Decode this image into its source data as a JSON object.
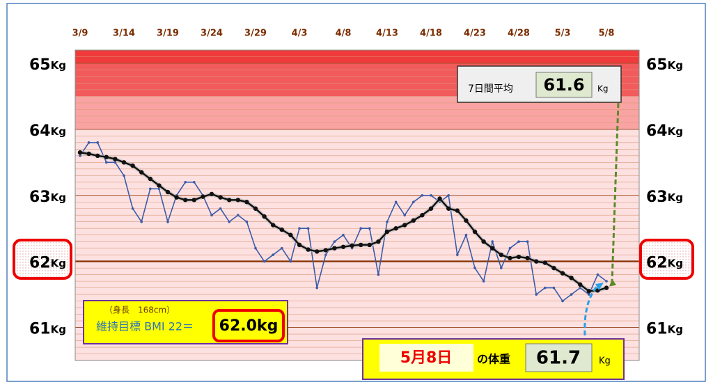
{
  "chart_data": {
    "type": "line",
    "categories": [
      "3/9",
      null,
      null,
      null,
      null,
      "3/14",
      null,
      null,
      null,
      null,
      "3/19",
      null,
      null,
      null,
      null,
      "3/24",
      null,
      null,
      null,
      null,
      "3/29",
      null,
      null,
      null,
      null,
      "4/3",
      null,
      null,
      null,
      null,
      "4/8",
      null,
      null,
      null,
      null,
      "4/13",
      null,
      null,
      null,
      null,
      "4/18",
      null,
      null,
      null,
      null,
      "4/23",
      null,
      null,
      null,
      null,
      "4/28",
      null,
      null,
      null,
      null,
      "5/3",
      null,
      null,
      null,
      null,
      "5/8"
    ],
    "series": [
      {
        "color": "#3a5ba8",
        "values": [
          63.6,
          63.8,
          63.8,
          63.5,
          63.5,
          63.3,
          62.8,
          62.6,
          63.1,
          63.1,
          62.6,
          63.0,
          63.2,
          63.2,
          63.0,
          62.7,
          62.8,
          62.6,
          62.7,
          62.6,
          62.2,
          62.0,
          62.1,
          62.2,
          62.0,
          62.5,
          62.5,
          61.6,
          62.1,
          62.3,
          62.4,
          62.2,
          62.5,
          62.5,
          61.8,
          62.6,
          62.9,
          62.7,
          62.9,
          63.0,
          63.0,
          62.9,
          63.0,
          62.1,
          62.4,
          61.9,
          61.7,
          62.3,
          61.9,
          62.2,
          62.3,
          62.3,
          61.5,
          61.6,
          61.6,
          61.4,
          61.5,
          61.6,
          61.5,
          61.8,
          61.7
        ]
      },
      {
        "color": "#111111",
        "values": [
          63.65,
          63.63,
          63.6,
          63.58,
          63.55,
          63.5,
          63.45,
          63.35,
          63.25,
          63.15,
          63.05,
          62.97,
          62.93,
          62.93,
          62.98,
          63.02,
          62.97,
          62.93,
          62.93,
          62.9,
          62.8,
          62.68,
          62.55,
          62.48,
          62.4,
          62.25,
          62.18,
          62.15,
          62.17,
          62.2,
          62.22,
          62.24,
          62.25,
          62.25,
          62.3,
          62.45,
          62.5,
          62.55,
          62.62,
          62.7,
          62.8,
          62.95,
          62.8,
          62.77,
          62.62,
          62.45,
          62.3,
          62.2,
          62.1,
          62.05,
          62.07,
          62.05,
          62.0,
          61.98,
          61.9,
          61.82,
          61.75,
          61.65,
          61.55,
          61.56,
          61.6
        ]
      }
    ],
    "ylim": [
      60.5,
      65.2
    ],
    "yticks": [
      61,
      62,
      63,
      64,
      65
    ],
    "y_unit": "Kg",
    "highlight_tick": 62,
    "zones": [
      {
        "from": 60.5,
        "to": 64,
        "color": "#fde0e0"
      },
      {
        "from": 64,
        "to": 64.5,
        "color": "#f9a3a3"
      },
      {
        "from": 64.5,
        "to": 65,
        "color": "#f25b5b"
      },
      {
        "from": 65,
        "to": 65.2,
        "color": "#ef3b3b"
      }
    ],
    "annotations": {
      "avg_label": "7日間平均",
      "avg_value": "61.6",
      "avg_unit": "Kg",
      "height_note": "（身長　168cm）",
      "target_label": "維持目標 BMI 22＝",
      "target_value": "62.0kg",
      "date_label": "5月8日",
      "weight_label": "の体重",
      "weight_value": "61.7",
      "weight_unit": "Kg"
    }
  }
}
